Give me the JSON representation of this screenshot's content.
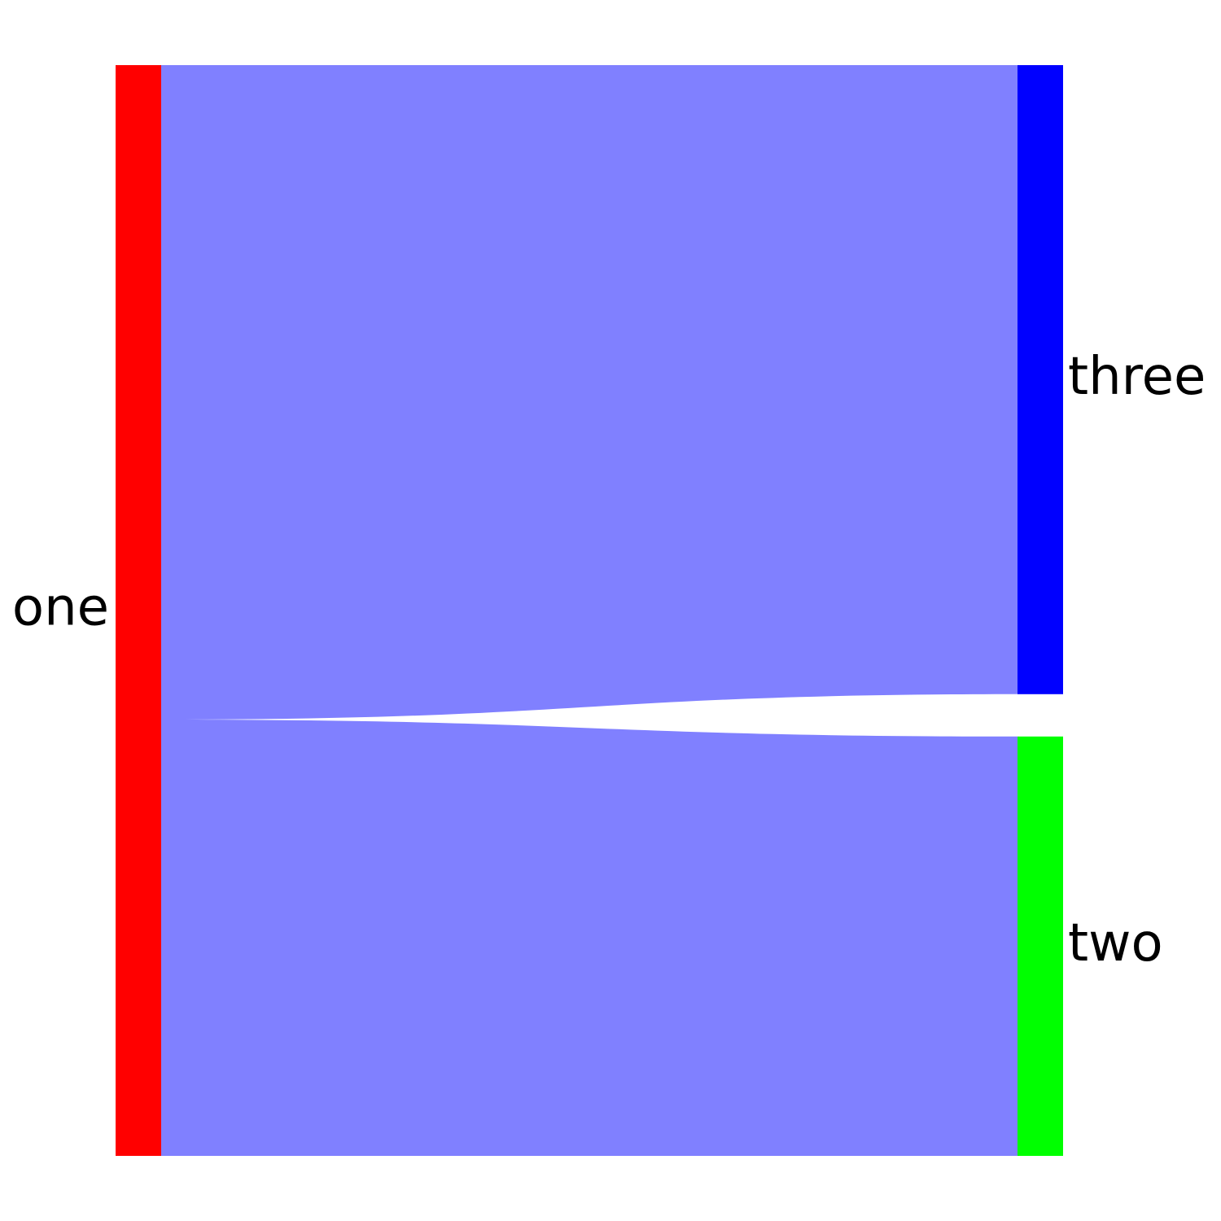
{
  "chart_data": {
    "type": "sankey",
    "nodes": [
      {
        "id": "one",
        "label": "one",
        "color": "#ff0000"
      },
      {
        "id": "two",
        "label": "two",
        "color": "#00ff00"
      },
      {
        "id": "three",
        "label": "three",
        "color": "#0000ff"
      }
    ],
    "links": [
      {
        "source": "one",
        "target": "three",
        "value": 1.5,
        "color": "#8080ff"
      },
      {
        "source": "one",
        "target": "two",
        "value": 1.0,
        "color": "#8080ff"
      }
    ]
  }
}
